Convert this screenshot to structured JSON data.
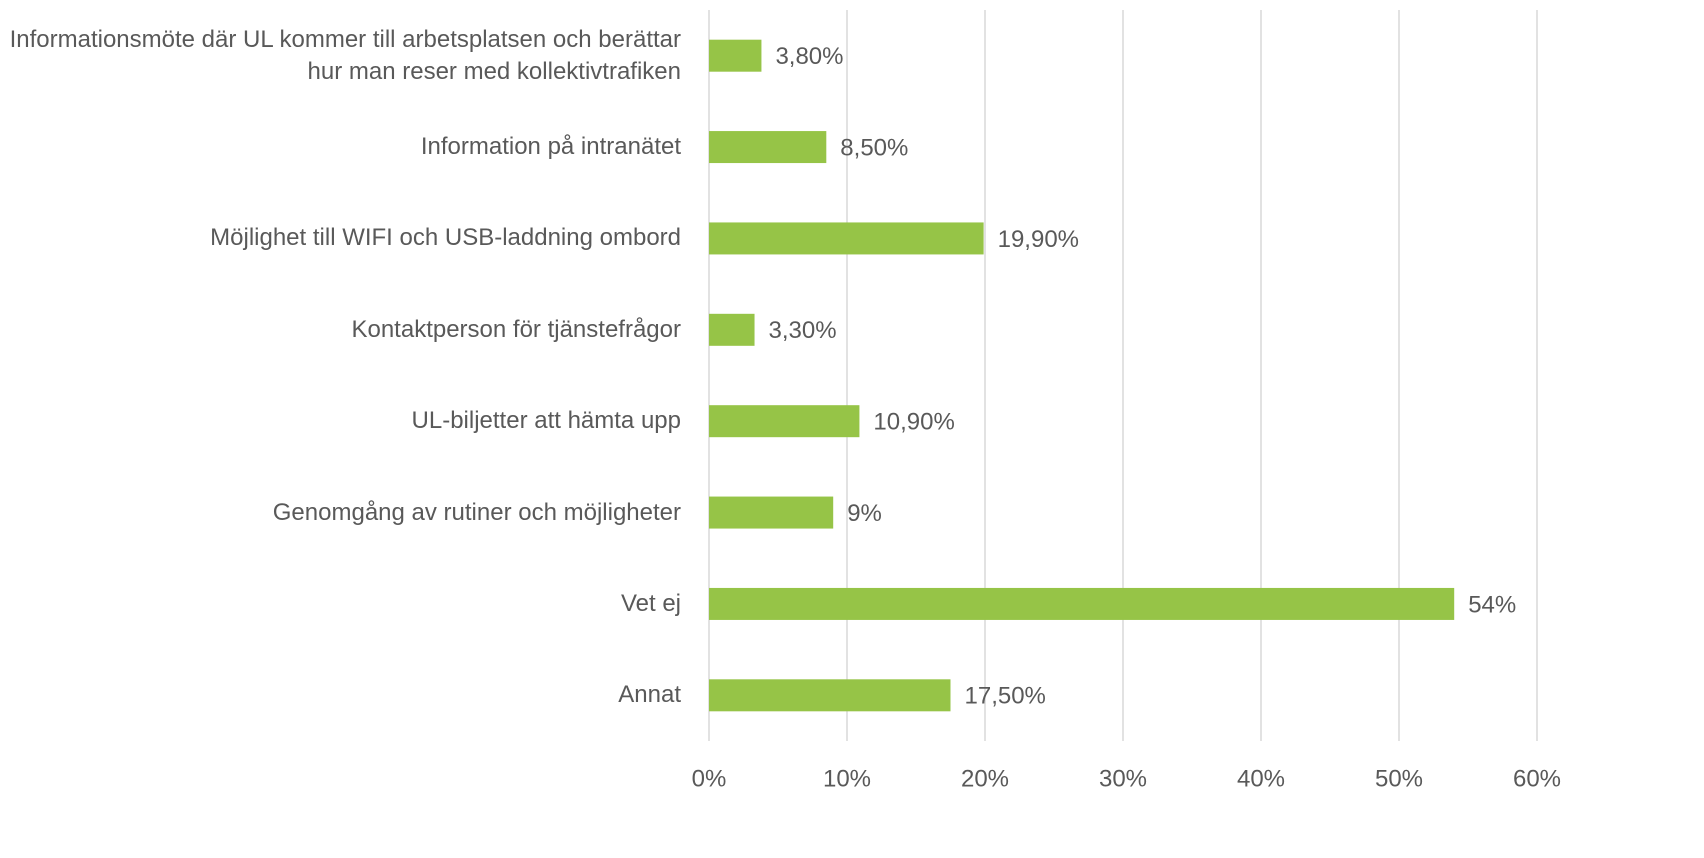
{
  "chart_data": {
    "type": "bar",
    "orientation": "horizontal",
    "categories": [
      "Informationsmöte där UL kommer till arbetsplatsen och berättar hur man reser med kollektivtrafiken",
      "Information på intranätet",
      "Möjlighet till WIFI och USB-laddning ombord",
      "Kontaktperson för tjänstefrågor",
      "UL-biljetter att hämta upp",
      "Genomgång av rutiner och möjligheter",
      "Vet ej",
      "Annat"
    ],
    "values": [
      3.8,
      8.5,
      19.9,
      3.3,
      10.9,
      9,
      54,
      17.5
    ],
    "value_labels": [
      "3,80%",
      "8,50%",
      "19,90%",
      "3,30%",
      "10,90%",
      "9%",
      "54%",
      "17,50%"
    ],
    "color": "#96c447",
    "xlim": [
      0,
      60
    ],
    "xticks": [
      {
        "value": 0,
        "label": "0%"
      },
      {
        "value": 10,
        "label": "10%"
      },
      {
        "value": 20,
        "label": "20%"
      },
      {
        "value": 30,
        "label": "30%"
      },
      {
        "value": 40,
        "label": "40%"
      },
      {
        "value": 50,
        "label": "50%"
      },
      {
        "value": 60,
        "label": "60%"
      }
    ],
    "grid": true
  }
}
